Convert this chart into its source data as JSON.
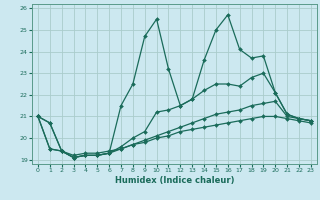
{
  "xlabel": "Humidex (Indice chaleur)",
  "background_color": "#cce8f0",
  "grid_color": "#aacccc",
  "line_color": "#1a6b5a",
  "xlim": [
    -0.5,
    23.5
  ],
  "ylim": [
    18.8,
    26.2
  ],
  "yticks": [
    19,
    20,
    21,
    22,
    23,
    24,
    25,
    26
  ],
  "xticks": [
    0,
    1,
    2,
    3,
    4,
    5,
    6,
    7,
    8,
    9,
    10,
    11,
    12,
    13,
    14,
    15,
    16,
    17,
    18,
    19,
    20,
    21,
    22,
    23
  ],
  "series": [
    {
      "x": [
        0,
        1,
        2,
        3,
        4,
        5,
        6,
        7,
        8,
        9,
        10,
        11,
        12,
        13,
        14,
        15,
        16,
        17,
        18,
        19,
        20,
        21,
        22,
        23
      ],
      "y": [
        21.0,
        20.7,
        19.4,
        19.1,
        19.2,
        19.2,
        19.3,
        21.5,
        22.5,
        24.7,
        25.5,
        23.2,
        21.5,
        21.8,
        23.6,
        25.0,
        25.7,
        24.1,
        23.7,
        23.8,
        22.1,
        21.1,
        20.9,
        20.8
      ]
    },
    {
      "x": [
        0,
        1,
        2,
        3,
        4,
        5,
        6,
        7,
        8,
        9,
        10,
        11,
        12,
        13,
        14,
        15,
        16,
        17,
        18,
        19,
        20,
        21,
        22,
        23
      ],
      "y": [
        21.0,
        20.7,
        19.4,
        19.1,
        19.2,
        19.2,
        19.3,
        19.6,
        20.0,
        20.3,
        21.2,
        21.3,
        21.5,
        21.8,
        22.2,
        22.5,
        22.5,
        22.4,
        22.8,
        23.0,
        22.1,
        21.1,
        20.9,
        20.8
      ]
    },
    {
      "x": [
        0,
        1,
        2,
        3,
        4,
        5,
        6,
        7,
        8,
        9,
        10,
        11,
        12,
        13,
        14,
        15,
        16,
        17,
        18,
        19,
        20,
        21,
        22,
        23
      ],
      "y": [
        21.0,
        19.5,
        19.4,
        19.1,
        19.2,
        19.2,
        19.3,
        19.5,
        19.7,
        19.9,
        20.1,
        20.3,
        20.5,
        20.7,
        20.9,
        21.1,
        21.2,
        21.3,
        21.5,
        21.6,
        21.7,
        21.0,
        20.9,
        20.8
      ]
    },
    {
      "x": [
        0,
        1,
        2,
        3,
        4,
        5,
        6,
        7,
        8,
        9,
        10,
        11,
        12,
        13,
        14,
        15,
        16,
        17,
        18,
        19,
        20,
        21,
        22,
        23
      ],
      "y": [
        21.0,
        19.5,
        19.4,
        19.2,
        19.3,
        19.3,
        19.4,
        19.5,
        19.7,
        19.8,
        20.0,
        20.1,
        20.3,
        20.4,
        20.5,
        20.6,
        20.7,
        20.8,
        20.9,
        21.0,
        21.0,
        20.9,
        20.8,
        20.7
      ]
    }
  ]
}
